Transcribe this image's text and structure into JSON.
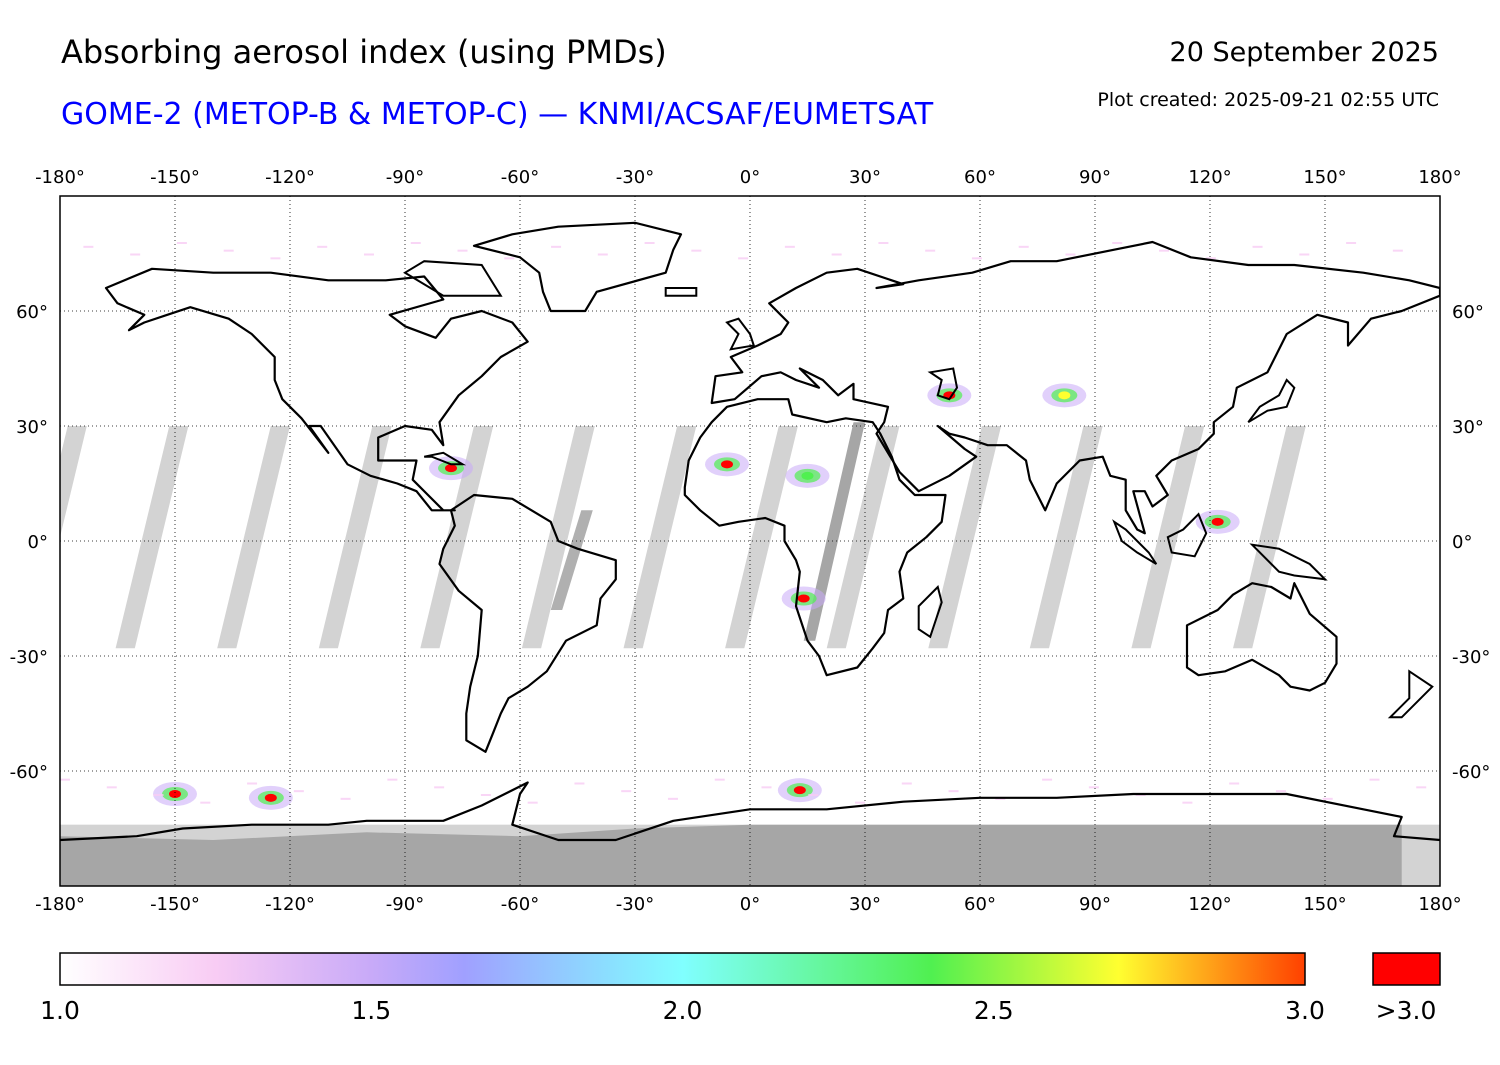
{
  "header": {
    "title": "Absorbing aerosol index (using PMDs)",
    "subtitle": "GOME-2 (METOP-B & METOP-C) — KNMI/ACSAF/EUMETSAT",
    "date": "20 September 2025",
    "plot_created": "Plot created: 2025-09-21 02:55 UTC"
  },
  "map": {
    "projection": "equirectangular",
    "lon_range": [
      -180,
      180
    ],
    "lat_range": [
      -90,
      90
    ],
    "lon_ticks": [
      -180,
      -150,
      -120,
      -90,
      -60,
      -30,
      0,
      30,
      60,
      90,
      120,
      150,
      180
    ],
    "lat_ticks": [
      60,
      30,
      0,
      -30,
      -60
    ],
    "lon_tick_labels": [
      "-180°",
      "-150°",
      "-120°",
      "-90°",
      "-60°",
      "-30°",
      "0°",
      "30°",
      "60°",
      "90°",
      "120°",
      "150°",
      "180°"
    ],
    "lat_tick_labels": [
      "60°",
      "30°",
      "0°",
      "-30°",
      "-60°"
    ],
    "grid": "dotted",
    "no_data_color": "#d3d3d3",
    "polar_night_color": "#a6a6a6",
    "coastline_color": "#000000",
    "aerosol_features": [
      {
        "region": "central Africa (Angola/Congo)",
        "lon": 14,
        "lat": -15,
        "intensity": ">3.0"
      },
      {
        "region": "west Africa (Sahel)",
        "lon": -6,
        "lat": 20,
        "intensity": ">3.0"
      },
      {
        "region": "central Sahara",
        "lon": 15,
        "lat": 17,
        "intensity": 2.5
      },
      {
        "region": "Caspian region",
        "lon": 52,
        "lat": 38,
        "intensity": ">3.0"
      },
      {
        "region": "Taklamakan",
        "lon": 82,
        "lat": 38,
        "intensity": 2.8
      },
      {
        "region": "Caribbean",
        "lon": -78,
        "lat": 19,
        "intensity": ">3.0"
      },
      {
        "region": "Indonesia",
        "lon": 122,
        "lat": 5,
        "intensity": ">3.0"
      },
      {
        "region": "Southern Ocean",
        "lon": 13,
        "lat": -65,
        "intensity": ">3.0"
      },
      {
        "region": "Southern Ocean",
        "lon": -150,
        "lat": -66,
        "intensity": ">3.0"
      },
      {
        "region": "Southern Ocean",
        "lon": -125,
        "lat": -67,
        "intensity": ">3.0"
      }
    ]
  },
  "colorbar": {
    "min": 1.0,
    "max": 3.0,
    "tick_labels": [
      "1.0",
      "1.5",
      "2.0",
      "2.5",
      "3.0"
    ],
    "tick_values": [
      1.0,
      1.5,
      2.0,
      2.5,
      3.0
    ],
    "over_label": ">3.0",
    "over_color": "#ff0000",
    "stops": [
      {
        "value": 1.0,
        "color": "#ffffff"
      },
      {
        "value": 1.25,
        "color": "#f8ccf4"
      },
      {
        "value": 1.5,
        "color": "#c8aaf8"
      },
      {
        "value": 1.65,
        "color": "#a0a0ff"
      },
      {
        "value": 2.0,
        "color": "#80ffff"
      },
      {
        "value": 2.4,
        "color": "#50f050"
      },
      {
        "value": 2.7,
        "color": "#ffff30"
      },
      {
        "value": 3.0,
        "color": "#ff4000"
      }
    ]
  }
}
